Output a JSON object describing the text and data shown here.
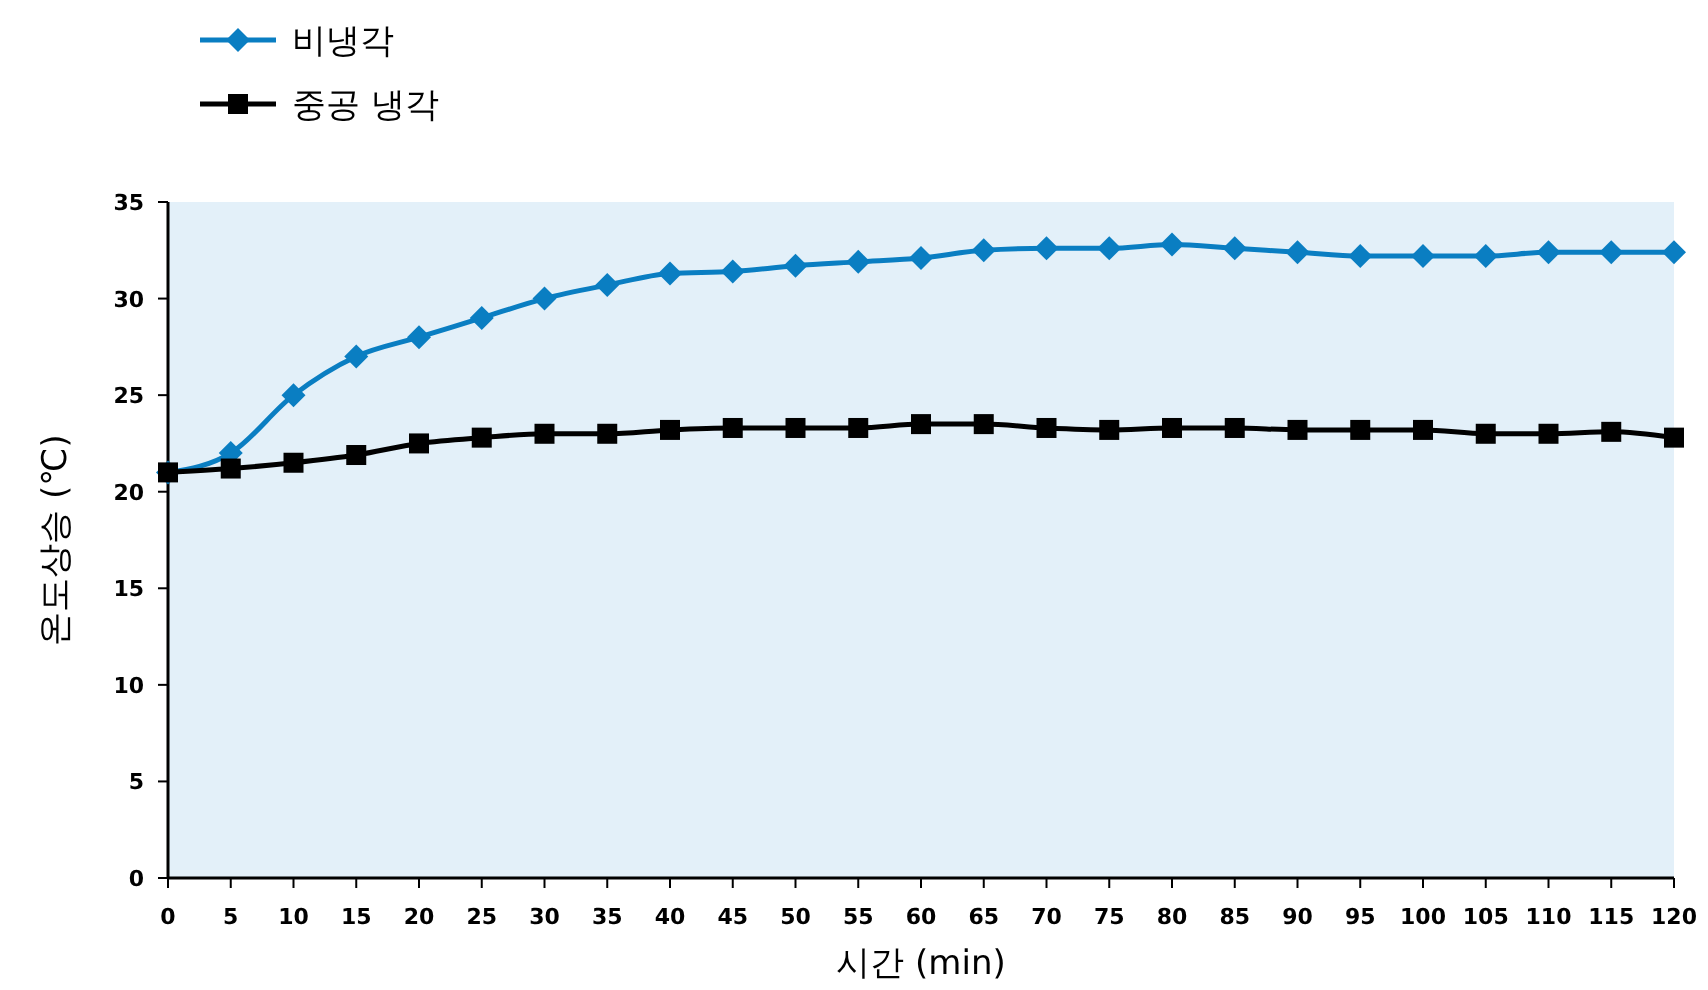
{
  "chart_data": {
    "type": "line",
    "xlabel": "시간 (min)",
    "ylabel": "온도상승 (℃)",
    "x": [
      0,
      5,
      10,
      15,
      20,
      25,
      30,
      35,
      40,
      45,
      50,
      55,
      60,
      65,
      70,
      75,
      80,
      85,
      90,
      95,
      100,
      105,
      110,
      115,
      120
    ],
    "xlim": [
      0,
      120
    ],
    "xticks": [
      0,
      5,
      10,
      15,
      20,
      25,
      30,
      35,
      40,
      45,
      50,
      55,
      60,
      65,
      70,
      75,
      80,
      85,
      90,
      95,
      100,
      105,
      110,
      115,
      120
    ],
    "ylim": [
      0,
      35
    ],
    "yticks": [
      0,
      5,
      10,
      15,
      20,
      25,
      30,
      35
    ],
    "legend": "top left",
    "grid": false,
    "line_style": "solid",
    "series": [
      {
        "name": "비냉각",
        "color": "#0a7ec2",
        "marker": "diamond",
        "values": [
          21,
          22,
          25,
          27,
          28,
          29,
          30,
          30.7,
          31.3,
          31.4,
          31.7,
          31.9,
          32.1,
          32.5,
          32.6,
          32.6,
          32.8,
          32.6,
          32.4,
          32.2,
          32.2,
          32.2,
          32.4,
          32.4,
          32.4
        ]
      },
      {
        "name": "중공 냉각",
        "color": "#000000",
        "marker": "square",
        "values": [
          21,
          21.2,
          21.5,
          21.9,
          22.5,
          22.8,
          23,
          23,
          23.2,
          23.3,
          23.3,
          23.3,
          23.5,
          23.5,
          23.3,
          23.2,
          23.3,
          23.3,
          23.2,
          23.2,
          23.2,
          23,
          23,
          23.1,
          22.8
        ]
      }
    ]
  }
}
